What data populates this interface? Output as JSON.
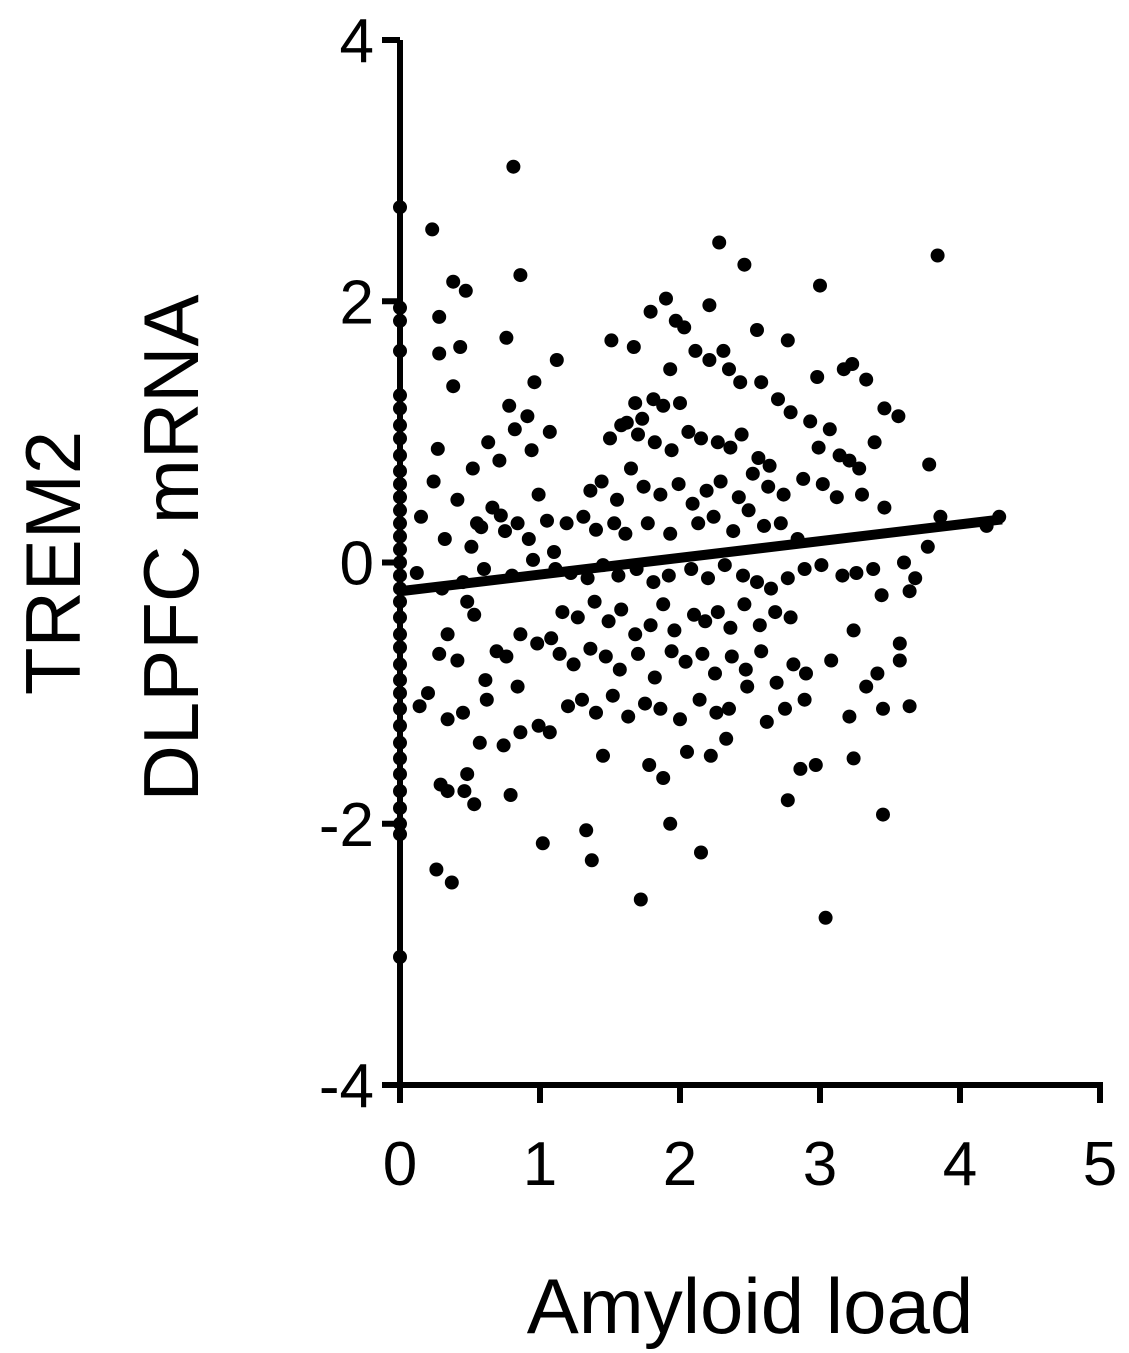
{
  "chart_data": {
    "type": "scatter",
    "title": "",
    "xlabel": "Amyloid load",
    "ylabel_lines": [
      "TREM2",
      "DLPFC mRNA"
    ],
    "xlim": [
      0,
      5
    ],
    "ylim": [
      -4,
      4
    ],
    "xticks": [
      0,
      1,
      2,
      3,
      4,
      5
    ],
    "yticks": [
      -4,
      -2,
      0,
      2,
      4
    ],
    "xtick_labels": [
      "0",
      "1",
      "2",
      "3",
      "4",
      "5"
    ],
    "ytick_labels": [
      "-4",
      "-2",
      "0",
      "2",
      "4"
    ],
    "grid": false,
    "legend": "none",
    "marker_color": "#000000",
    "fit_line": {
      "x": [
        0,
        4.3
      ],
      "y": [
        -0.22,
        0.33
      ],
      "color": "#000000"
    },
    "points": [
      [
        0,
        2.72
      ],
      [
        0,
        1.95
      ],
      [
        0,
        1.85
      ],
      [
        0,
        1.62
      ],
      [
        0,
        1.28
      ],
      [
        0,
        1.18
      ],
      [
        0,
        1.05
      ],
      [
        0,
        0.95
      ],
      [
        0,
        0.82
      ],
      [
        0,
        0.7
      ],
      [
        0,
        0.6
      ],
      [
        0,
        0.5
      ],
      [
        0,
        0.4
      ],
      [
        0,
        0.3
      ],
      [
        0,
        0.2
      ],
      [
        0,
        0.1
      ],
      [
        0,
        0.0
      ],
      [
        0,
        -0.1
      ],
      [
        0,
        -0.2
      ],
      [
        0,
        -0.3
      ],
      [
        0,
        -0.42
      ],
      [
        0,
        -0.55
      ],
      [
        0,
        -0.65
      ],
      [
        0,
        -0.78
      ],
      [
        0,
        -0.9
      ],
      [
        0,
        -1.0
      ],
      [
        0,
        -1.12
      ],
      [
        0,
        -1.25
      ],
      [
        0,
        -1.38
      ],
      [
        0,
        -1.5
      ],
      [
        0,
        -1.62
      ],
      [
        0,
        -1.75
      ],
      [
        0,
        -1.88
      ],
      [
        0,
        -2.0
      ],
      [
        0,
        -2.08
      ],
      [
        0,
        -3.02
      ],
      [
        0.23,
        2.55
      ],
      [
        0.81,
        3.03
      ],
      [
        0.47,
        2.08
      ],
      [
        0.86,
        2.2
      ],
      [
        0.38,
        2.15
      ],
      [
        0.28,
        1.88
      ],
      [
        0.28,
        1.6
      ],
      [
        0.43,
        1.65
      ],
      [
        0.38,
        1.35
      ],
      [
        0.76,
        1.72
      ],
      [
        0.96,
        1.38
      ],
      [
        1.12,
        1.55
      ],
      [
        0.78,
        1.2
      ],
      [
        0.91,
        1.12
      ],
      [
        0.82,
        1.02
      ],
      [
        1.07,
        1.0
      ],
      [
        0.27,
        0.87
      ],
      [
        0.52,
        0.72
      ],
      [
        0.63,
        0.92
      ],
      [
        0.71,
        0.78
      ],
      [
        0.94,
        0.86
      ],
      [
        0.24,
        0.62
      ],
      [
        0.41,
        0.48
      ],
      [
        0.55,
        0.3
      ],
      [
        0.66,
        0.42
      ],
      [
        0.72,
        0.36
      ],
      [
        0.84,
        0.3
      ],
      [
        0.99,
        0.52
      ],
      [
        0.32,
        0.18
      ],
      [
        0.51,
        0.12
      ],
      [
        0.58,
        0.27
      ],
      [
        0.75,
        0.24
      ],
      [
        0.92,
        0.18
      ],
      [
        1.05,
        0.32
      ],
      [
        0.15,
        0.35
      ],
      [
        0.12,
        -0.08
      ],
      [
        0.3,
        -0.2
      ],
      [
        0.45,
        -0.15
      ],
      [
        0.6,
        -0.05
      ],
      [
        0.8,
        -0.1
      ],
      [
        0.95,
        0.02
      ],
      [
        1.1,
        0.08
      ],
      [
        0.2,
        -1.0
      ],
      [
        0.34,
        -0.55
      ],
      [
        0.48,
        -0.3
      ],
      [
        0.53,
        -0.4
      ],
      [
        0.69,
        -0.68
      ],
      [
        0.86,
        -0.55
      ],
      [
        0.98,
        -0.62
      ],
      [
        1.08,
        -0.58
      ],
      [
        0.28,
        -0.7
      ],
      [
        0.41,
        -0.75
      ],
      [
        0.61,
        -0.9
      ],
      [
        0.76,
        -0.72
      ],
      [
        0.84,
        -0.95
      ],
      [
        0.14,
        -1.1
      ],
      [
        0.34,
        -1.2
      ],
      [
        0.45,
        -1.15
      ],
      [
        0.57,
        -1.38
      ],
      [
        0.62,
        -1.05
      ],
      [
        0.74,
        -1.4
      ],
      [
        0.86,
        -1.3
      ],
      [
        0.99,
        -1.25
      ],
      [
        1.07,
        -1.3
      ],
      [
        0.29,
        -1.7
      ],
      [
        0.34,
        -1.75
      ],
      [
        0.48,
        -1.62
      ],
      [
        0.46,
        -1.75
      ],
      [
        0.53,
        -1.85
      ],
      [
        0.79,
        -1.78
      ],
      [
        0.26,
        -2.35
      ],
      [
        0.37,
        -2.45
      ],
      [
        1.02,
        -2.15
      ],
      [
        1.33,
        -2.05
      ],
      [
        1.37,
        -2.28
      ],
      [
        1.72,
        -2.58
      ],
      [
        1.93,
        -2.0
      ],
      [
        2.15,
        -2.22
      ],
      [
        3.04,
        -2.72
      ],
      [
        3.45,
        -1.93
      ],
      [
        1.67,
        1.65
      ],
      [
        1.51,
        1.7
      ],
      [
        1.79,
        1.92
      ],
      [
        1.9,
        2.02
      ],
      [
        1.97,
        1.85
      ],
      [
        2.03,
        1.8
      ],
      [
        2.21,
        1.97
      ],
      [
        2.28,
        2.45
      ],
      [
        2.46,
        2.28
      ],
      [
        2.55,
        1.78
      ],
      [
        2.77,
        1.7
      ],
      [
        3.0,
        2.12
      ],
      [
        3.84,
        2.35
      ],
      [
        1.93,
        1.48
      ],
      [
        2.11,
        1.62
      ],
      [
        2.21,
        1.55
      ],
      [
        2.31,
        1.62
      ],
      [
        2.35,
        1.48
      ],
      [
        2.43,
        1.38
      ],
      [
        2.58,
        1.38
      ],
      [
        2.7,
        1.25
      ],
      [
        2.98,
        1.42
      ],
      [
        3.17,
        1.48
      ],
      [
        3.23,
        1.52
      ],
      [
        3.33,
        1.4
      ],
      [
        1.68,
        1.22
      ],
      [
        1.73,
        1.1
      ],
      [
        1.81,
        1.25
      ],
      [
        1.88,
        1.2
      ],
      [
        2.0,
        1.22
      ],
      [
        1.5,
        0.95
      ],
      [
        1.58,
        1.05
      ],
      [
        1.62,
        1.07
      ],
      [
        1.7,
        0.98
      ],
      [
        1.82,
        0.92
      ],
      [
        1.94,
        0.86
      ],
      [
        2.06,
        1.0
      ],
      [
        2.15,
        0.95
      ],
      [
        2.27,
        0.92
      ],
      [
        2.36,
        0.88
      ],
      [
        2.44,
        0.98
      ],
      [
        2.56,
        0.8
      ],
      [
        2.64,
        0.74
      ],
      [
        2.79,
        1.15
      ],
      [
        2.93,
        1.08
      ],
      [
        2.99,
        0.88
      ],
      [
        3.07,
        1.02
      ],
      [
        3.14,
        0.82
      ],
      [
        3.21,
        0.78
      ],
      [
        3.28,
        0.72
      ],
      [
        3.39,
        0.92
      ],
      [
        3.46,
        1.18
      ],
      [
        3.56,
        1.12
      ],
      [
        1.36,
        0.55
      ],
      [
        1.44,
        0.62
      ],
      [
        1.55,
        0.48
      ],
      [
        1.65,
        0.72
      ],
      [
        1.74,
        0.58
      ],
      [
        1.86,
        0.52
      ],
      [
        1.99,
        0.6
      ],
      [
        2.09,
        0.45
      ],
      [
        2.19,
        0.55
      ],
      [
        2.29,
        0.62
      ],
      [
        2.42,
        0.5
      ],
      [
        2.52,
        0.68
      ],
      [
        2.63,
        0.58
      ],
      [
        2.74,
        0.52
      ],
      [
        2.88,
        0.64
      ],
      [
        3.02,
        0.6
      ],
      [
        3.12,
        0.5
      ],
      [
        3.3,
        0.52
      ],
      [
        3.46,
        0.42
      ],
      [
        3.78,
        0.75
      ],
      [
        3.86,
        0.35
      ],
      [
        4.19,
        0.28
      ],
      [
        4.28,
        0.35
      ],
      [
        1.19,
        0.3
      ],
      [
        1.31,
        0.35
      ],
      [
        1.4,
        0.25
      ],
      [
        1.53,
        0.3
      ],
      [
        1.61,
        0.22
      ],
      [
        1.77,
        0.3
      ],
      [
        1.93,
        0.22
      ],
      [
        2.13,
        0.3
      ],
      [
        2.24,
        0.35
      ],
      [
        2.38,
        0.24
      ],
      [
        2.49,
        0.4
      ],
      [
        2.6,
        0.28
      ],
      [
        2.72,
        0.3
      ],
      [
        2.84,
        0.18
      ],
      [
        1.11,
        -0.05
      ],
      [
        1.22,
        -0.08
      ],
      [
        1.34,
        -0.12
      ],
      [
        1.45,
        -0.02
      ],
      [
        1.56,
        -0.1
      ],
      [
        1.69,
        -0.05
      ],
      [
        1.81,
        -0.15
      ],
      [
        1.92,
        -0.1
      ],
      [
        2.08,
        -0.05
      ],
      [
        2.2,
        -0.12
      ],
      [
        2.32,
        -0.02
      ],
      [
        2.45,
        -0.1
      ],
      [
        2.55,
        -0.15
      ],
      [
        2.65,
        -0.2
      ],
      [
        2.77,
        -0.12
      ],
      [
        2.89,
        -0.05
      ],
      [
        3.01,
        -0.02
      ],
      [
        3.16,
        -0.1
      ],
      [
        3.26,
        -0.08
      ],
      [
        3.38,
        -0.05
      ],
      [
        3.6,
        0.0
      ],
      [
        3.68,
        -0.12
      ],
      [
        3.77,
        0.12
      ],
      [
        3.64,
        -0.22
      ],
      [
        1.16,
        -0.38
      ],
      [
        1.27,
        -0.42
      ],
      [
        1.39,
        -0.3
      ],
      [
        1.49,
        -0.45
      ],
      [
        1.58,
        -0.36
      ],
      [
        1.68,
        -0.55
      ],
      [
        1.79,
        -0.48
      ],
      [
        1.88,
        -0.32
      ],
      [
        1.96,
        -0.52
      ],
      [
        2.1,
        -0.4
      ],
      [
        2.18,
        -0.45
      ],
      [
        2.27,
        -0.38
      ],
      [
        2.36,
        -0.5
      ],
      [
        2.46,
        -0.32
      ],
      [
        2.57,
        -0.48
      ],
      [
        2.68,
        -0.38
      ],
      [
        2.79,
        -0.42
      ],
      [
        3.24,
        -0.52
      ],
      [
        3.44,
        -0.25
      ],
      [
        1.14,
        -0.7
      ],
      [
        1.24,
        -0.78
      ],
      [
        1.36,
        -0.66
      ],
      [
        1.47,
        -0.72
      ],
      [
        1.57,
        -0.82
      ],
      [
        1.7,
        -0.7
      ],
      [
        1.82,
        -0.88
      ],
      [
        1.94,
        -0.68
      ],
      [
        2.04,
        -0.76
      ],
      [
        2.16,
        -0.7
      ],
      [
        2.25,
        -0.85
      ],
      [
        2.37,
        -0.72
      ],
      [
        2.47,
        -0.82
      ],
      [
        2.58,
        -0.68
      ],
      [
        2.69,
        -0.92
      ],
      [
        2.81,
        -0.78
      ],
      [
        2.9,
        -0.85
      ],
      [
        3.08,
        -0.75
      ],
      [
        3.41,
        -0.85
      ],
      [
        3.57,
        -0.62
      ],
      [
        3.57,
        -0.75
      ],
      [
        1.2,
        -1.1
      ],
      [
        1.3,
        -1.05
      ],
      [
        1.4,
        -1.15
      ],
      [
        1.52,
        -1.02
      ],
      [
        1.63,
        -1.18
      ],
      [
        1.75,
        -1.08
      ],
      [
        1.86,
        -1.12
      ],
      [
        2.0,
        -1.2
      ],
      [
        2.14,
        -1.05
      ],
      [
        2.26,
        -1.15
      ],
      [
        2.35,
        -1.12
      ],
      [
        2.48,
        -0.95
      ],
      [
        2.62,
        -1.22
      ],
      [
        2.75,
        -1.12
      ],
      [
        2.89,
        -1.05
      ],
      [
        3.21,
        -1.18
      ],
      [
        3.33,
        -0.95
      ],
      [
        3.45,
        -1.12
      ],
      [
        3.64,
        -1.1
      ],
      [
        1.45,
        -1.48
      ],
      [
        1.78,
        -1.55
      ],
      [
        1.88,
        -1.65
      ],
      [
        2.05,
        -1.45
      ],
      [
        2.22,
        -1.48
      ],
      [
        2.33,
        -1.35
      ],
      [
        2.86,
        -1.58
      ],
      [
        2.97,
        -1.55
      ],
      [
        3.24,
        -1.5
      ],
      [
        2.77,
        -1.82
      ]
    ]
  }
}
